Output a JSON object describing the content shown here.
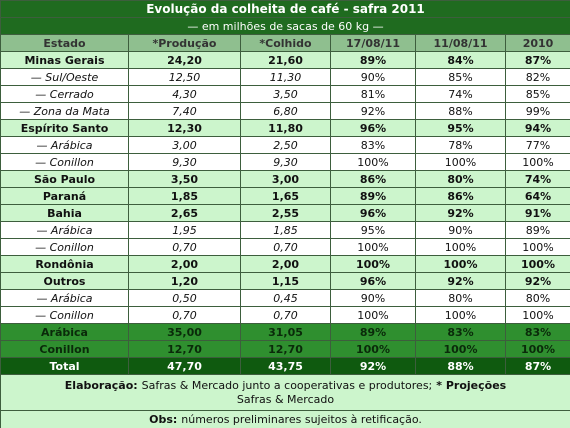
{
  "title": "Evolução da colheita de café - safra 2011",
  "subtitle": "— em milhões de sacas de 60 kg —",
  "table": {
    "header": [
      "Estado",
      "*Produção",
      "*Colhido",
      "17/08/11",
      "11/08/11",
      "2010"
    ],
    "rows": [
      {
        "style": "state",
        "cells": [
          "Minas Gerais",
          "24,20",
          "21,60",
          "89%",
          "84%",
          "87%"
        ]
      },
      {
        "style": "sub",
        "cells": [
          "— Sul/Oeste",
          "12,50",
          "11,30",
          "90%",
          "85%",
          "82%"
        ]
      },
      {
        "style": "sub",
        "cells": [
          "— Cerrado",
          "4,30",
          "3,50",
          "81%",
          "74%",
          "85%"
        ]
      },
      {
        "style": "sub",
        "cells": [
          "— Zona da Mata",
          "7,40",
          "6,80",
          "92%",
          "88%",
          "99%"
        ]
      },
      {
        "style": "state",
        "cells": [
          "Espírito Santo",
          "12,30",
          "11,80",
          "96%",
          "95%",
          "94%"
        ]
      },
      {
        "style": "sub",
        "cells": [
          "— Arábica",
          "3,00",
          "2,50",
          "83%",
          "78%",
          "77%"
        ]
      },
      {
        "style": "sub",
        "cells": [
          "— Conillon",
          "9,30",
          "9,30",
          "100%",
          "100%",
          "100%"
        ]
      },
      {
        "style": "state",
        "cells": [
          "São Paulo",
          "3,50",
          "3,00",
          "86%",
          "80%",
          "74%"
        ]
      },
      {
        "style": "state",
        "cells": [
          "Paraná",
          "1,85",
          "1,65",
          "89%",
          "86%",
          "64%"
        ]
      },
      {
        "style": "state",
        "cells": [
          "Bahia",
          "2,65",
          "2,55",
          "96%",
          "92%",
          "91%"
        ]
      },
      {
        "style": "sub",
        "cells": [
          "— Arábica",
          "1,95",
          "1,85",
          "95%",
          "90%",
          "89%"
        ]
      },
      {
        "style": "sub",
        "cells": [
          "— Conillon",
          "0,70",
          "0,70",
          "100%",
          "100%",
          "100%"
        ]
      },
      {
        "style": "state",
        "cells": [
          "Rondônia",
          "2,00",
          "2,00",
          "100%",
          "100%",
          "100%"
        ]
      },
      {
        "style": "state",
        "cells": [
          "Outros",
          "1,20",
          "1,15",
          "96%",
          "92%",
          "92%"
        ]
      },
      {
        "style": "sub",
        "cells": [
          "— Arábica",
          "0,50",
          "0,45",
          "90%",
          "80%",
          "80%"
        ]
      },
      {
        "style": "sub",
        "cells": [
          "— Conillon",
          "0,70",
          "0,70",
          "100%",
          "100%",
          "100%"
        ]
      },
      {
        "style": "group",
        "cells": [
          "Arábica",
          "35,00",
          "31,05",
          "89%",
          "83%",
          "83%"
        ]
      },
      {
        "style": "group",
        "cells": [
          "Conillon",
          "12,70",
          "12,70",
          "100%",
          "100%",
          "100%"
        ]
      },
      {
        "style": "total",
        "cells": [
          "Total",
          "47,70",
          "43,75",
          "92%",
          "88%",
          "87%"
        ]
      }
    ]
  },
  "footer": {
    "credit_label": "Elaboração:",
    "credit_text": "Safras & Mercado junto a cooperativas e produtores;",
    "projection_label": "* Projeções",
    "projection_text": "Safras & Mercado",
    "obs_label": "Obs:",
    "obs_text": "números preliminares sujeitos à retificação."
  }
}
